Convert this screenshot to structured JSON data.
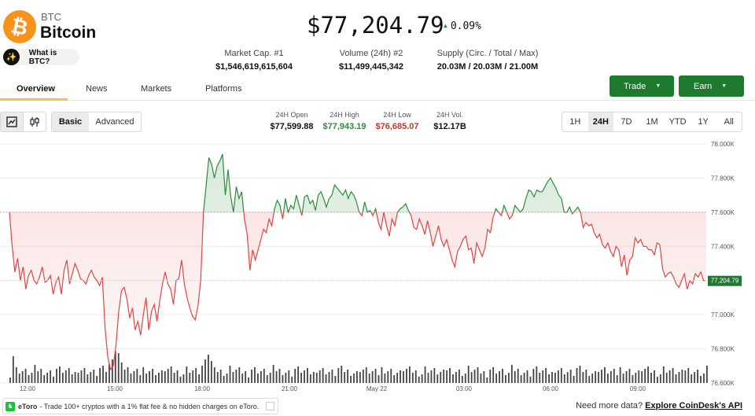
{
  "header": {
    "ticker": "BTC",
    "name": "Bitcoin",
    "what_is": "What is BTC?",
    "price": "$77,204.79",
    "change": "0.09%"
  },
  "stats": [
    {
      "label": "Market Cap. #1",
      "value": "$1,546,619,615,604"
    },
    {
      "label": "Volume (24h) #2",
      "value": "$11,499,445,342"
    },
    {
      "label": "Supply (Circ. / Total / Max)",
      "value": "20.03M / 20.03M / 21.00M"
    }
  ],
  "tabs": [
    "Overview",
    "News",
    "Markets",
    "Platforms"
  ],
  "buttons": {
    "trade": "Trade",
    "earn": "Earn"
  },
  "chart_modes": [
    "Basic",
    "Advanced"
  ],
  "ohlc": [
    {
      "label": "24H Open",
      "value": "$77,599.88",
      "color": "#111111"
    },
    {
      "label": "24H High",
      "value": "$77,943.19",
      "color": "#2e8b3d"
    },
    {
      "label": "24H Low",
      "value": "$76,685.07",
      "color": "#c0392b"
    },
    {
      "label": "24H Vol.",
      "value": "$12.17B",
      "color": "#111111"
    }
  ],
  "ranges": [
    "1H",
    "24H",
    "7D",
    "1M",
    "YTD",
    "1Y",
    "All"
  ],
  "selected_range": "24H",
  "colors": {
    "up": "#2e8b3d",
    "down": "#e04545",
    "brand": "#f7931a",
    "button": "#1e7a2e"
  },
  "chart_data": {
    "type": "line",
    "x_ticks": [
      "12:00",
      "15:00",
      "18:00",
      "21:00",
      "May 22",
      "03:00",
      "06:00",
      "09:00"
    ],
    "y_ticks": [
      "78.000K",
      "77.800K",
      "77.600K",
      "77.400K",
      "77.200K",
      "77.000K",
      "76.800K",
      "76.600K"
    ],
    "ylim": [
      76600,
      78000
    ],
    "baseline": 77599.88,
    "current_label": "77,204.79",
    "prices": [
      77600,
      77400,
      77250,
      77330,
      77200,
      77280,
      77150,
      77230,
      77260,
      77200,
      77180,
      77220,
      77280,
      77190,
      77200,
      77230,
      77120,
      77190,
      77220,
      77120,
      77260,
      77320,
      77180,
      77240,
      77300,
      77260,
      77210,
      77200,
      77180,
      77230,
      77260,
      77220,
      77200,
      77170,
      77220,
      76920,
      76750,
      76680,
      76700,
      76820,
      77020,
      77140,
      77160,
      77090,
      76980,
      77040,
      76910,
      76960,
      76880,
      77000,
      77100,
      76910,
      77020,
      77060,
      76960,
      77080,
      77180,
      77250,
      77180,
      77150,
      77060,
      77200,
      77210,
      77320,
      77180,
      77100,
      77040,
      76990,
      76970,
      77050,
      77200,
      77600,
      77760,
      77920,
      77880,
      77800,
      77870,
      77900,
      77940,
      77700,
      77850,
      77690,
      77600,
      77750,
      77680,
      77720,
      77560,
      77470,
      77260,
      77380,
      77320,
      77380,
      77440,
      77500,
      77480,
      77560,
      77520,
      77620,
      77670,
      77640,
      77560,
      77680,
      77600,
      77640,
      77620,
      77700,
      77640,
      77580,
      77690,
      77700,
      77650,
      77670,
      77610,
      77700,
      77720,
      77680,
      77630,
      77680,
      77700,
      77760,
      77740,
      77720,
      77700,
      77730,
      77680,
      77720,
      77700,
      77660,
      77600,
      77580,
      77660,
      77600,
      77610,
      77580,
      77620,
      77540,
      77500,
      77600,
      77520,
      77460,
      77560,
      77520,
      77600,
      77620,
      77630,
      77650,
      77610,
      77580,
      77510,
      77500,
      77560,
      77520,
      77470,
      77550,
      77480,
      77400,
      77460,
      77520,
      77440,
      77400,
      77440,
      77380,
      77320,
      77280,
      77370,
      77400,
      77440,
      77460,
      77380,
      77390,
      77300,
      77420,
      77380,
      77340,
      77390,
      77500,
      77480,
      77570,
      77620,
      77600,
      77580,
      77640,
      77600,
      77560,
      77580,
      77640,
      77620,
      77600,
      77620,
      77680,
      77730,
      77720,
      77690,
      77730,
      77720,
      77720,
      77750,
      77780,
      77800,
      77770,
      77740,
      77700,
      77680,
      77600,
      77600,
      77630,
      77590,
      77610,
      77630,
      77600,
      77510,
      77540,
      77520,
      77530,
      77480,
      77450,
      77470,
      77410,
      77390,
      77420,
      77370,
      77340,
      77400,
      77380,
      77280,
      77350,
      77230,
      77320,
      77340,
      77450,
      77420,
      77440,
      77400,
      77400,
      77380,
      77380,
      77350,
      77420,
      77410,
      77270,
      77220,
      77240,
      77250,
      77220,
      77180,
      77160,
      77200,
      77240,
      77150,
      77200,
      77180,
      77240,
      77220,
      77250,
      77200,
      77200
    ]
  },
  "footer": {
    "etoro_name": "eToro",
    "etoro_text": "- Trade 100+ cryptos with a 1% flat fee & no hidden charges on eToro.",
    "need_more": "Need more data?",
    "api_link": "Explore CoinDesk's API"
  }
}
